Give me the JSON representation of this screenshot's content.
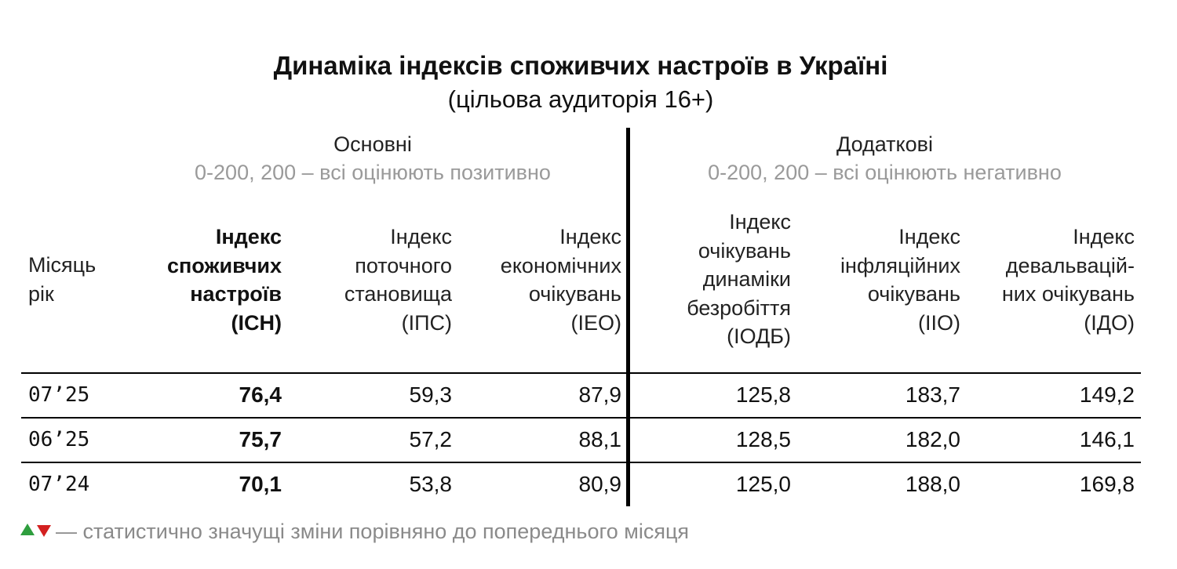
{
  "title": "Динаміка індексів споживчих настроїв в Україні",
  "subtitle": "(цільова аудиторія 16+)",
  "groups": {
    "main": {
      "title": "Основні",
      "scale": "0-200, 200 – всі оцінюють позитивно"
    },
    "additional": {
      "title": "Додаткові",
      "scale": "0-200, 200 – всі оцінюють негативно"
    }
  },
  "columns": {
    "month": [
      "Місяць",
      "рік"
    ],
    "ich": [
      "Індекс",
      "споживчих",
      "настроїв",
      "(ІСН)"
    ],
    "ips": [
      "Індекс",
      "поточного",
      "становища",
      "(ІПС)"
    ],
    "ieo": [
      "Індекс",
      "економічних",
      "очікувань",
      "(ІЕО)"
    ],
    "iodb": [
      "Індекс",
      "очікувань",
      "динаміки",
      "безробіття",
      "(ІОДБ)"
    ],
    "iio": [
      "Індекс",
      "інфляційних",
      "очікувань",
      "(ІІО)"
    ],
    "ido": [
      "Індекс",
      "девальваційних очікувань",
      "(ІДО)"
    ],
    "ido_lines": [
      "Індекс",
      "девальваці й-",
      "них очікувань",
      "(ІДО)"
    ]
  },
  "rows": [
    {
      "month": "07’25",
      "ich": "76,4",
      "ips": "59,3",
      "ieo": "87,9",
      "iodb": "125,8",
      "iio": "183,7",
      "ido": "149,2"
    },
    {
      "month": "06’25",
      "ich": "75,7",
      "ips": "57,2",
      "ieo": "88,1",
      "iodb": "128,5",
      "iio": "182,0",
      "ido": "146,1"
    },
    {
      "month": "07’24",
      "ich": "70,1",
      "ips": "53,8",
      "ieo": "80,9",
      "iodb": "125,0",
      "iio": "188,0",
      "ido": "169,8"
    }
  ],
  "legend": {
    "up_icon": "triangle-up-icon",
    "down_icon": "triangle-down-icon",
    "up_color": "#2e9e3e",
    "down_color": "#d32020",
    "text": "— статистично значущі зміни порівняно до попереднього місяця"
  }
}
